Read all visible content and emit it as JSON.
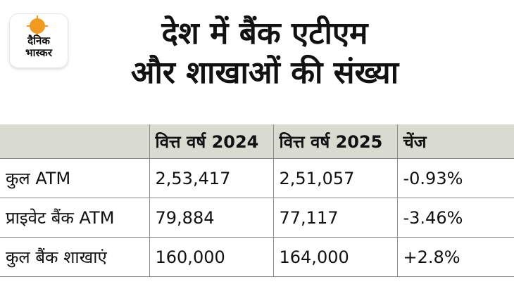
{
  "brand": {
    "logo_line1": "दैनिक",
    "logo_line2": "भास्कर",
    "accent": "#f29a1f"
  },
  "title": {
    "line1": "देश में बैंक एटीएम",
    "line2": "और शाखाओं की संख्या"
  },
  "table": {
    "header_bg": "#d9dbd0",
    "columns": [
      "",
      "वित्त वर्ष 2024",
      "वित्त वर्ष 2025",
      "चेंज"
    ],
    "rows": [
      [
        "कुल ATM",
        "2,53,417",
        "2,51,057",
        "-0.93%"
      ],
      [
        "प्राइवेट बैंक ATM",
        "79,884",
        "77,117",
        "-3.46%"
      ],
      [
        "कुल बैंक शाखाएं",
        "160,000",
        "164,000",
        "+2.8%"
      ]
    ]
  }
}
